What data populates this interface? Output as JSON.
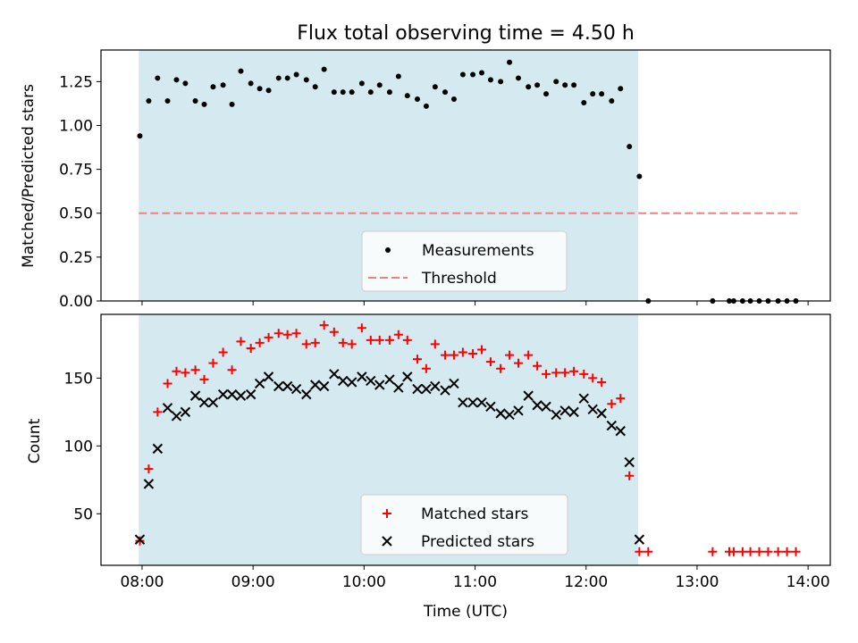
{
  "figure": {
    "title": "Flux total observing time = 4.50 h"
  },
  "chart_data": [
    {
      "type": "scatter",
      "title": "Flux total observing time = 4.50 h",
      "xlabel": "",
      "ylabel": "Matched/Predicted stars",
      "xlim": [
        7.63,
        14.2
      ],
      "ylim": [
        0.0,
        1.43
      ],
      "xticks": [
        8,
        9,
        10,
        11,
        12,
        13,
        14
      ],
      "yticks": [
        0.0,
        0.25,
        0.5,
        0.75,
        1.0,
        1.25
      ],
      "ytick_labels": [
        "0.00",
        "0.25",
        "0.50",
        "0.75",
        "1.00",
        "1.25"
      ],
      "shaded_region": {
        "x_start": 7.97,
        "x_end": 12.47,
        "color": "#d4eaf0"
      },
      "legend": {
        "placement": "lower-center",
        "entries": [
          {
            "label": "Measurements",
            "marker": "dot",
            "color": "#000000"
          },
          {
            "label": "Threshold",
            "marker": "dashed-line",
            "color": "#f08080"
          }
        ]
      },
      "series": [
        {
          "name": "Measurements",
          "marker": "dot",
          "color": "#000000",
          "x": [
            7.98,
            8.06,
            8.14,
            8.23,
            8.31,
            8.39,
            8.48,
            8.56,
            8.64,
            8.73,
            8.81,
            8.89,
            8.98,
            9.06,
            9.14,
            9.23,
            9.31,
            9.39,
            9.48,
            9.56,
            9.64,
            9.73,
            9.81,
            9.89,
            9.98,
            10.06,
            10.14,
            10.23,
            10.31,
            10.39,
            10.48,
            10.56,
            10.64,
            10.73,
            10.81,
            10.89,
            10.98,
            11.06,
            11.14,
            11.23,
            11.31,
            11.39,
            11.48,
            11.56,
            11.64,
            11.73,
            11.81,
            11.89,
            11.98,
            12.06,
            12.14,
            12.23,
            12.31,
            12.39,
            12.48,
            12.56,
            13.14,
            13.29,
            13.33,
            13.41,
            13.48,
            13.56,
            13.64,
            13.73,
            13.81,
            13.89
          ],
          "y": [
            0.94,
            1.14,
            1.27,
            1.14,
            1.26,
            1.24,
            1.14,
            1.12,
            1.22,
            1.23,
            1.12,
            1.31,
            1.24,
            1.21,
            1.2,
            1.27,
            1.27,
            1.29,
            1.26,
            1.22,
            1.32,
            1.19,
            1.19,
            1.19,
            1.24,
            1.19,
            1.23,
            1.19,
            1.28,
            1.17,
            1.15,
            1.11,
            1.22,
            1.19,
            1.15,
            1.29,
            1.29,
            1.3,
            1.26,
            1.25,
            1.36,
            1.27,
            1.22,
            1.23,
            1.18,
            1.25,
            1.23,
            1.23,
            1.13,
            1.18,
            1.18,
            1.14,
            1.21,
            0.88,
            0.71,
            0.0,
            0.0,
            0.0,
            0.0,
            0.0,
            0.0,
            0.0,
            0.0,
            0.0,
            0.0,
            0.0
          ]
        },
        {
          "name": "Threshold",
          "type": "line",
          "style": "dashed",
          "color": "#f08080",
          "x": [
            7.97,
            13.92
          ],
          "y": [
            0.5,
            0.5
          ]
        }
      ]
    },
    {
      "type": "scatter",
      "title": "",
      "xlabel": "Time (UTC)",
      "ylabel": "Count",
      "xlim": [
        7.63,
        14.2
      ],
      "ylim": [
        12,
        197
      ],
      "xticks": [
        8,
        9,
        10,
        11,
        12,
        13,
        14
      ],
      "xtick_labels": [
        "08:00",
        "09:00",
        "10:00",
        "11:00",
        "12:00",
        "13:00",
        "14:00"
      ],
      "yticks": [
        50,
        100,
        150
      ],
      "ytick_labels": [
        "50",
        "100",
        "150"
      ],
      "shaded_region": {
        "x_start": 7.97,
        "x_end": 12.47,
        "color": "#d4eaf0"
      },
      "legend": {
        "placement": "lower-center",
        "entries": [
          {
            "label": "Matched stars",
            "marker": "plus",
            "color": "#ff0000"
          },
          {
            "label": "Predicted stars",
            "marker": "x",
            "color": "#000000"
          }
        ]
      },
      "series": [
        {
          "name": "Matched stars",
          "marker": "plus",
          "color": "#ff0000",
          "x": [
            7.98,
            8.06,
            8.14,
            8.23,
            8.31,
            8.39,
            8.48,
            8.56,
            8.64,
            8.73,
            8.81,
            8.89,
            8.98,
            9.06,
            9.14,
            9.23,
            9.31,
            9.39,
            9.48,
            9.56,
            9.64,
            9.73,
            9.81,
            9.89,
            9.98,
            10.06,
            10.14,
            10.23,
            10.31,
            10.39,
            10.48,
            10.56,
            10.64,
            10.73,
            10.81,
            10.89,
            10.98,
            11.06,
            11.14,
            11.23,
            11.31,
            11.39,
            11.48,
            11.56,
            11.64,
            11.73,
            11.81,
            11.89,
            11.98,
            12.06,
            12.14,
            12.23,
            12.31,
            12.39,
            12.48,
            12.56,
            13.14,
            13.29,
            13.33,
            13.41,
            13.48,
            13.56,
            13.64,
            13.73,
            13.81,
            13.89
          ],
          "y": [
            30,
            83,
            125,
            146,
            155,
            154,
            156,
            149,
            161,
            169,
            156,
            177,
            172,
            176,
            180,
            183,
            182,
            183,
            175,
            176,
            189,
            184,
            176,
            175,
            187,
            178,
            178,
            178,
            182,
            178,
            164,
            157,
            175,
            167,
            167,
            169,
            168,
            171,
            162,
            157,
            167,
            161,
            167,
            159,
            153,
            154,
            154,
            155,
            153,
            150,
            147,
            131,
            135,
            78,
            22,
            22,
            22,
            22,
            22,
            22,
            22,
            22,
            22,
            22,
            22,
            22
          ]
        },
        {
          "name": "Predicted stars",
          "marker": "x",
          "color": "#000000",
          "x": [
            7.98,
            8.06,
            8.14,
            8.23,
            8.31,
            8.39,
            8.48,
            8.56,
            8.64,
            8.73,
            8.81,
            8.89,
            8.98,
            9.06,
            9.14,
            9.23,
            9.31,
            9.39,
            9.48,
            9.56,
            9.64,
            9.73,
            9.81,
            9.89,
            9.98,
            10.06,
            10.14,
            10.23,
            10.31,
            10.39,
            10.48,
            10.56,
            10.64,
            10.73,
            10.81,
            10.89,
            10.98,
            11.06,
            11.14,
            11.23,
            11.31,
            11.39,
            11.48,
            11.56,
            11.64,
            11.73,
            11.81,
            11.89,
            11.98,
            12.06,
            12.14,
            12.23,
            12.31,
            12.39,
            12.48
          ],
          "y": [
            31,
            72,
            98,
            128,
            122,
            125,
            137,
            132,
            132,
            138,
            138,
            137,
            138,
            146,
            151,
            144,
            144,
            142,
            138,
            145,
            144,
            153,
            148,
            147,
            151,
            148,
            145,
            149,
            143,
            151,
            142,
            142,
            144,
            141,
            146,
            132,
            132,
            132,
            129,
            124,
            123,
            126,
            137,
            130,
            129,
            123,
            126,
            125,
            135,
            127,
            124,
            115,
            111,
            88,
            31
          ]
        }
      ]
    }
  ]
}
